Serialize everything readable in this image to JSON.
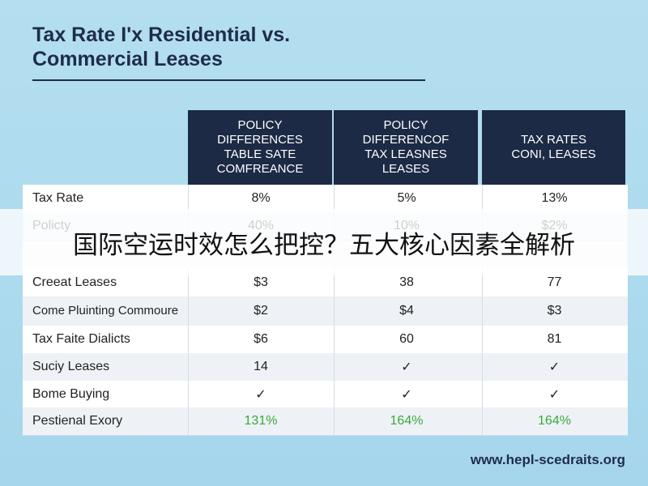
{
  "header": {
    "title": [
      "Tax Rate I'x Residential vs.",
      "Commercial Leases"
    ]
  },
  "table": {
    "columns": [
      [
        "POLICY",
        "DIFFERENCES",
        "TABLE SATE",
        "COMFREANCE"
      ],
      [
        "POLICY",
        "DIFFERENCOF",
        "TAX LEASNES",
        "LEASES"
      ],
      [
        "TAX RATES",
        "CONI, LEASES"
      ]
    ],
    "rows": [
      [
        "Tax Rate",
        "8%",
        "5%",
        "13%"
      ],
      [
        "Policty",
        "40%",
        "10%",
        "$2%"
      ],
      [
        "Creeat Leases",
        "$3",
        "38",
        "77"
      ],
      [
        "Come Pluinting Commoure",
        "$2",
        "$4",
        "$3"
      ],
      [
        "Tax Faite Dialicts",
        "$6",
        "60",
        "81"
      ],
      [
        "Suciy Leases",
        "14",
        "✓",
        "✓"
      ],
      [
        "Bome Buying",
        "✓",
        "✓",
        "✓"
      ],
      [
        "Pestienal Exory",
        "131%",
        "164%",
        "164%"
      ]
    ]
  },
  "banner": {
    "text": "国际空运时效怎么把控？五大核心因素全解析"
  },
  "footer": {
    "url": "www.hepl-scedraits.org"
  }
}
